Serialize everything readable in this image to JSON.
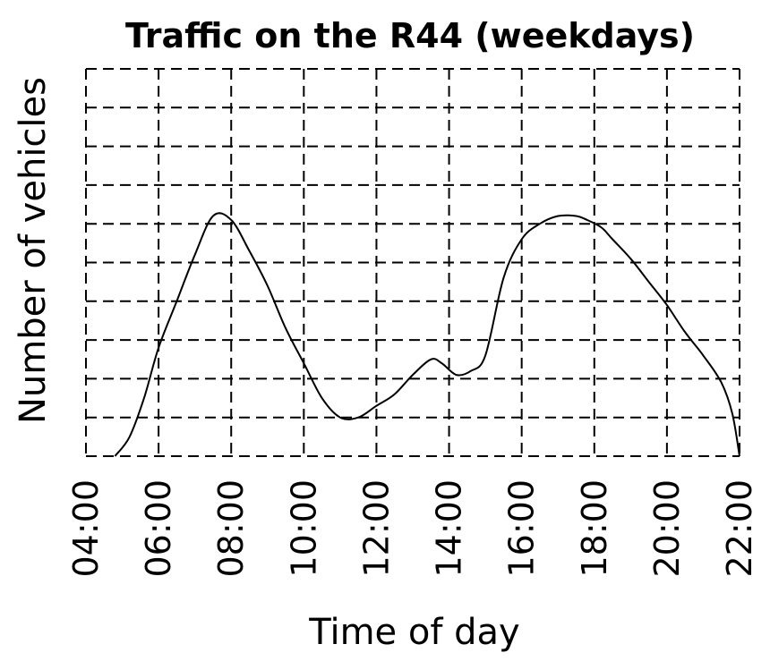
{
  "chart_data": {
    "type": "line",
    "title": "Traffic on the R44 (weekdays)",
    "xlabel": "Time of day",
    "ylabel": "Number of vehicles",
    "x_ticks": [
      "04:00",
      "06:00",
      "08:00",
      "10:00",
      "12:00",
      "14:00",
      "16:00",
      "18:00",
      "20:00",
      "22:00"
    ],
    "xlim": [
      4,
      22
    ],
    "ylim": [
      0,
      10
    ],
    "y_gridlines": 10,
    "grid": true,
    "y_tick_labels_shown": false,
    "series": [
      {
        "color": "#000000",
        "x": [
          4.8,
          5.2,
          5.6,
          6.0,
          6.5,
          7.0,
          7.5,
          8.0,
          8.5,
          9.0,
          9.5,
          10.0,
          10.5,
          11.0,
          11.5,
          12.0,
          12.5,
          13.0,
          13.5,
          13.8,
          14.2,
          14.6,
          15.0,
          15.5,
          16.0,
          16.5,
          17.0,
          17.5,
          17.8,
          18.2,
          18.5,
          19.0,
          19.5,
          20.0,
          20.5,
          21.0,
          21.5,
          21.8,
          22.0
        ],
        "y": [
          0.0,
          0.5,
          1.5,
          2.8,
          4.0,
          5.2,
          6.2,
          6.1,
          5.3,
          4.4,
          3.3,
          2.4,
          1.5,
          1.0,
          1.0,
          1.3,
          1.6,
          2.1,
          2.5,
          2.4,
          2.1,
          2.2,
          2.6,
          4.6,
          5.6,
          6.0,
          6.2,
          6.2,
          6.1,
          5.9,
          5.6,
          5.1,
          4.5,
          3.9,
          3.2,
          2.6,
          1.9,
          1.1,
          0.0
        ]
      }
    ]
  }
}
